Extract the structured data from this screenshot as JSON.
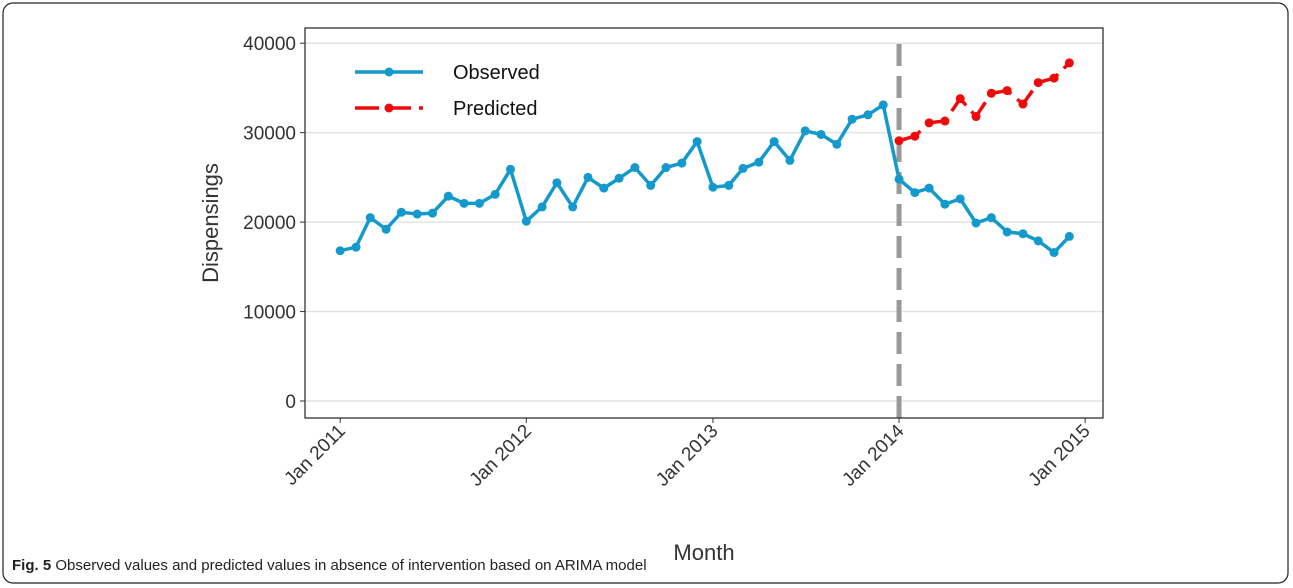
{
  "chart_data": {
    "type": "line",
    "x": [
      "2011-01",
      "2011-02",
      "2011-03",
      "2011-04",
      "2011-05",
      "2011-06",
      "2011-07",
      "2011-08",
      "2011-09",
      "2011-10",
      "2011-11",
      "2011-12",
      "2012-01",
      "2012-02",
      "2012-03",
      "2012-04",
      "2012-05",
      "2012-06",
      "2012-07",
      "2012-08",
      "2012-09",
      "2012-10",
      "2012-11",
      "2012-12",
      "2013-01",
      "2013-02",
      "2013-03",
      "2013-04",
      "2013-05",
      "2013-06",
      "2013-07",
      "2013-08",
      "2013-09",
      "2013-10",
      "2013-11",
      "2013-12",
      "2014-01",
      "2014-02",
      "2014-03",
      "2014-04",
      "2014-05",
      "2014-06",
      "2014-07",
      "2014-08",
      "2014-09",
      "2014-10",
      "2014-11",
      "2014-12"
    ],
    "series": [
      {
        "name": "Observed",
        "color": "#1499cc",
        "dash": false,
        "values": [
          16800,
          17200,
          20500,
          19200,
          21100,
          20900,
          21000,
          22900,
          22100,
          22100,
          23100,
          25900,
          20100,
          21700,
          24400,
          21700,
          25000,
          23800,
          24900,
          26100,
          24100,
          26100,
          26600,
          29000,
          23900,
          24100,
          26000,
          26700,
          29000,
          26900,
          30200,
          29800,
          28700,
          31500,
          32000,
          33100,
          24800,
          23300,
          23800,
          22000,
          22600,
          19900,
          20500,
          18900,
          18700,
          17900,
          16600,
          18400
        ]
      },
      {
        "name": "Predicted",
        "color": "#ee0a0a",
        "dash": true,
        "values": [
          null,
          null,
          null,
          null,
          null,
          null,
          null,
          null,
          null,
          null,
          null,
          null,
          null,
          null,
          null,
          null,
          null,
          null,
          null,
          null,
          null,
          null,
          null,
          null,
          null,
          null,
          null,
          null,
          null,
          null,
          null,
          null,
          null,
          null,
          null,
          null,
          29100,
          29600,
          31100,
          31300,
          33800,
          31800,
          34400,
          34700,
          33200,
          35600,
          36100,
          37800
        ]
      }
    ],
    "xlabel": "Month",
    "ylabel": "Dispensings",
    "xlim": [
      "2010-10-24",
      "2015-02-05"
    ],
    "ylim": [
      -1900,
      41700
    ],
    "xticks": [
      {
        "value": "2011-01",
        "label": "Jan 2011"
      },
      {
        "value": "2012-01",
        "label": "Jan 2012"
      },
      {
        "value": "2013-01",
        "label": "Jan 2013"
      },
      {
        "value": "2014-01",
        "label": "Jan 2014"
      },
      {
        "value": "2015-01",
        "label": "Jan 2015"
      }
    ],
    "yticks": [
      0,
      10000,
      20000,
      30000,
      40000
    ],
    "grid": true,
    "legend": "top-left",
    "vline": {
      "x": "2014-01",
      "color": "#999999"
    }
  },
  "caption": {
    "label": "Fig. 5",
    "text": "Observed values and predicted values in absence of intervention based on ARIMA model"
  }
}
